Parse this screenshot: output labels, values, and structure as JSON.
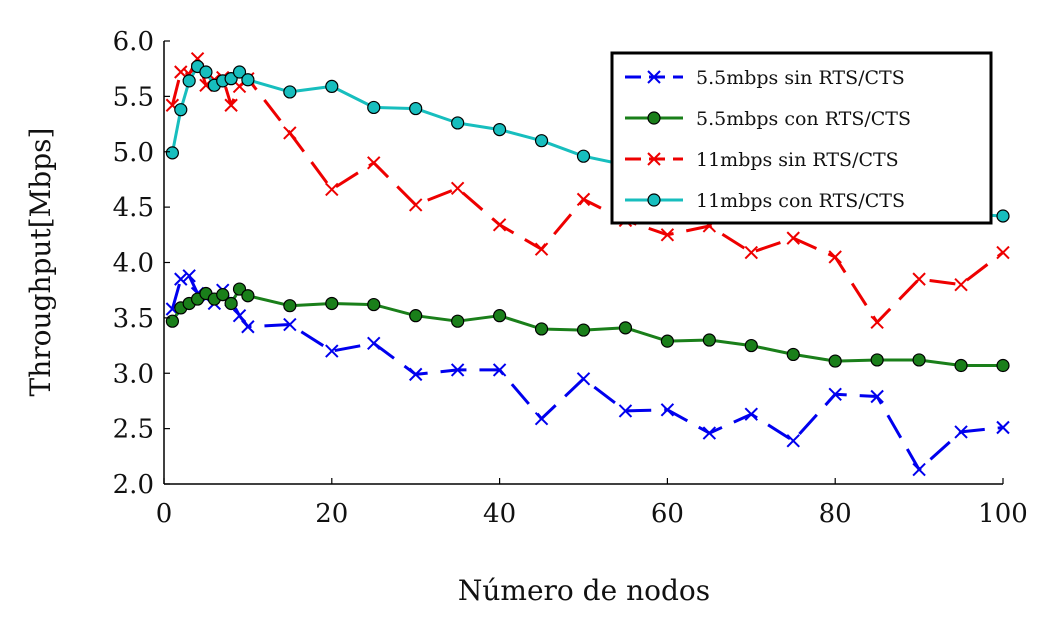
{
  "chart_data": {
    "type": "line",
    "xlabel": "Número de nodos",
    "ylabel": "Throughput[Mbps]",
    "xlim": [
      0,
      100
    ],
    "ylim": [
      2.0,
      6.0
    ],
    "xticks": [
      0,
      20,
      40,
      60,
      80,
      100
    ],
    "xtick_labels": [
      "0",
      "20",
      "40",
      "60",
      "80",
      "100"
    ],
    "yticks": [
      2.0,
      2.5,
      3.0,
      3.5,
      4.0,
      4.5,
      5.0,
      5.5,
      6.0
    ],
    "ytick_labels": [
      "2.0",
      "2.5",
      "3.0",
      "3.5",
      "4.0",
      "4.5",
      "5.0",
      "5.5",
      "6.0"
    ],
    "grid": false,
    "legend_position": "top-right",
    "series": [
      {
        "name": "5.5mbps sin RTS/CTS",
        "color": "#0000ee",
        "marker": "x",
        "dash": "dashed",
        "x": [
          1,
          2,
          3,
          4,
          5,
          6,
          7,
          8,
          9,
          10,
          15,
          20,
          25,
          30,
          35,
          40,
          45,
          50,
          55,
          60,
          65,
          70,
          75,
          80,
          85,
          90,
          95,
          100
        ],
        "values": [
          3.58,
          3.85,
          3.88,
          3.72,
          3.68,
          3.63,
          3.75,
          3.66,
          3.52,
          3.42,
          3.44,
          3.2,
          3.27,
          2.99,
          3.03,
          3.03,
          2.59,
          2.95,
          2.66,
          2.67,
          2.46,
          2.63,
          2.39,
          2.81,
          2.79,
          2.13,
          2.47,
          2.51
        ]
      },
      {
        "name": "5.5mbps con RTS/CTS",
        "color": "#1a7f1a",
        "marker": "o",
        "dash": "solid",
        "x": [
          1,
          2,
          3,
          4,
          5,
          6,
          7,
          8,
          9,
          10,
          15,
          20,
          25,
          30,
          35,
          40,
          45,
          50,
          55,
          60,
          65,
          70,
          75,
          80,
          85,
          90,
          95,
          100
        ],
        "values": [
          3.47,
          3.59,
          3.63,
          3.67,
          3.72,
          3.67,
          3.71,
          3.63,
          3.76,
          3.7,
          3.61,
          3.63,
          3.62,
          3.52,
          3.47,
          3.52,
          3.4,
          3.39,
          3.41,
          3.29,
          3.3,
          3.25,
          3.17,
          3.11,
          3.12,
          3.12,
          3.07,
          3.07
        ]
      },
      {
        "name": "11mbps sin RTS/CTS",
        "color": "#ee0000",
        "marker": "x",
        "dash": "dashed",
        "x": [
          1,
          2,
          3,
          4,
          5,
          6,
          7,
          8,
          9,
          10,
          15,
          20,
          25,
          30,
          35,
          40,
          45,
          50,
          55,
          60,
          65,
          70,
          75,
          80,
          85,
          90,
          95,
          100
        ],
        "values": [
          5.42,
          5.72,
          5.7,
          5.84,
          5.6,
          5.65,
          5.67,
          5.42,
          5.59,
          5.66,
          5.17,
          4.66,
          4.9,
          4.52,
          4.67,
          4.34,
          4.12,
          4.57,
          4.38,
          4.25,
          4.33,
          4.09,
          4.22,
          4.05,
          3.46,
          3.85,
          3.8,
          4.09
        ]
      },
      {
        "name": "11mbps con RTS/CTS",
        "color": "#17bebe",
        "marker": "o",
        "dash": "solid",
        "x": [
          1,
          2,
          3,
          4,
          5,
          6,
          7,
          8,
          9,
          10,
          15,
          20,
          25,
          30,
          35,
          40,
          45,
          50,
          55,
          60,
          65,
          70,
          75,
          80,
          85,
          90,
          95,
          100
        ],
        "values": [
          4.99,
          5.38,
          5.64,
          5.77,
          5.72,
          5.6,
          5.64,
          5.66,
          5.72,
          5.65,
          5.54,
          5.59,
          5.4,
          5.39,
          5.26,
          5.2,
          5.1,
          4.96,
          4.88,
          4.82,
          4.76,
          4.7,
          4.64,
          4.58,
          4.52,
          4.47,
          4.44,
          4.42
        ]
      }
    ]
  }
}
